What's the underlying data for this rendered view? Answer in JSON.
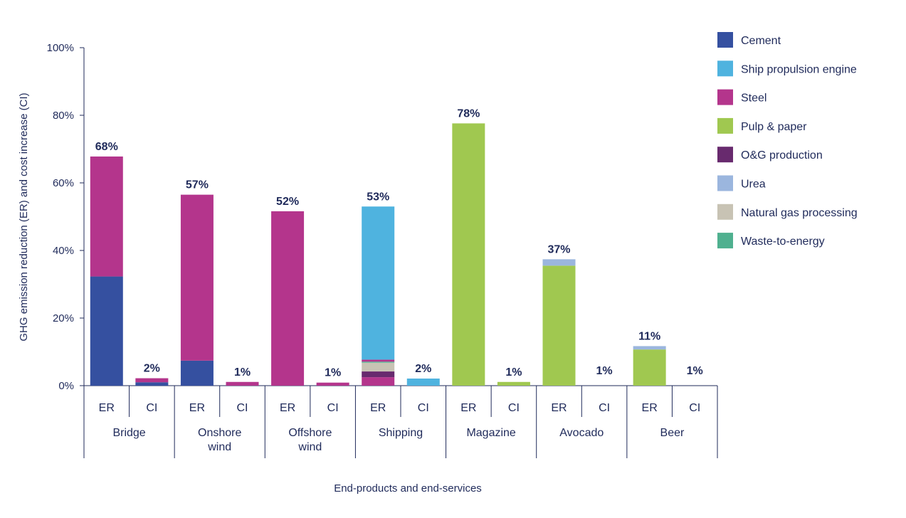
{
  "chart_data": {
    "type": "bar",
    "stacked": true,
    "ylabel": "GHG emission reduction (ER) and cost increase (CI)",
    "xlabel": "End-products and end-services",
    "ylim": [
      0,
      100
    ],
    "yticks": [
      0,
      20,
      40,
      60,
      80,
      100
    ],
    "ytick_labels": [
      "0%",
      "20%",
      "40%",
      "60%",
      "80%",
      "100%"
    ],
    "legend_position": "right",
    "series": [
      {
        "name": "Cement",
        "color": "#3550a0"
      },
      {
        "name": "Ship propulsion engine",
        "color": "#4fb3df"
      },
      {
        "name": "Steel",
        "color": "#b4358c"
      },
      {
        "name": "Pulp & paper",
        "color": "#a0c850"
      },
      {
        "name": "O&G production",
        "color": "#682a6e"
      },
      {
        "name": "Urea",
        "color": "#9bb6de"
      },
      {
        "name": "Natural gas processing",
        "color": "#c8c3b4"
      },
      {
        "name": "Waste-to-energy",
        "color": "#4fb08f"
      }
    ],
    "groups": [
      {
        "label": "Bridge",
        "bars": [
          {
            "sub": "ER",
            "total_label": "68%",
            "segments": [
              {
                "series": "Cement",
                "value": 32.3
              },
              {
                "series": "Steel",
                "value": 35.5
              }
            ]
          },
          {
            "sub": "CI",
            "total_label": "2%",
            "segments": [
              {
                "series": "Cement",
                "value": 1.0
              },
              {
                "series": "Steel",
                "value": 1.2
              }
            ]
          }
        ]
      },
      {
        "label": "Onshore wind",
        "bars": [
          {
            "sub": "ER",
            "total_label": "57%",
            "segments": [
              {
                "series": "Cement",
                "value": 7.4
              },
              {
                "series": "Steel",
                "value": 49.1
              }
            ]
          },
          {
            "sub": "CI",
            "total_label": "1%",
            "segments": [
              {
                "series": "Steel",
                "value": 1.1
              }
            ]
          }
        ]
      },
      {
        "label": "Offshore wind",
        "bars": [
          {
            "sub": "ER",
            "total_label": "52%",
            "segments": [
              {
                "series": "Steel",
                "value": 51.6
              }
            ]
          },
          {
            "sub": "CI",
            "total_label": "1%",
            "segments": [
              {
                "series": "Steel",
                "value": 0.9
              }
            ]
          }
        ]
      },
      {
        "label": "Shipping",
        "bars": [
          {
            "sub": "ER",
            "total_label": "53%",
            "segments": [
              {
                "series": "Steel",
                "value": 2.5
              },
              {
                "series": "O&G production",
                "value": 1.7
              },
              {
                "series": "Natural gas processing",
                "value": 2.6
              },
              {
                "series": "Waste-to-energy",
                "value": 0.3
              },
              {
                "series": "Steel",
                "value": 0.6
              },
              {
                "series": "Ship propulsion engine",
                "value": 45.3
              }
            ]
          },
          {
            "sub": "CI",
            "total_label": "2%",
            "segments": [
              {
                "series": "Ship propulsion engine",
                "value": 2.1
              }
            ]
          }
        ]
      },
      {
        "label": "Magazine",
        "bars": [
          {
            "sub": "ER",
            "total_label": "78%",
            "segments": [
              {
                "series": "Pulp & paper",
                "value": 77.6
              }
            ]
          },
          {
            "sub": "CI",
            "total_label": "1%",
            "segments": [
              {
                "series": "Pulp & paper",
                "value": 1.1
              }
            ]
          }
        ]
      },
      {
        "label": "Avocado",
        "bars": [
          {
            "sub": "ER",
            "total_label": "37%",
            "segments": [
              {
                "series": "Pulp & paper",
                "value": 35.5
              },
              {
                "series": "Urea",
                "value": 1.9
              }
            ]
          },
          {
            "sub": "CI",
            "total_label": "1%",
            "segments": []
          }
        ]
      },
      {
        "label": "Beer",
        "bars": [
          {
            "sub": "ER",
            "total_label": "11%",
            "segments": [
              {
                "series": "Pulp & paper",
                "value": 10.7
              },
              {
                "series": "Urea",
                "value": 1.0
              }
            ]
          },
          {
            "sub": "CI",
            "total_label": "1%",
            "segments": []
          }
        ]
      }
    ]
  }
}
